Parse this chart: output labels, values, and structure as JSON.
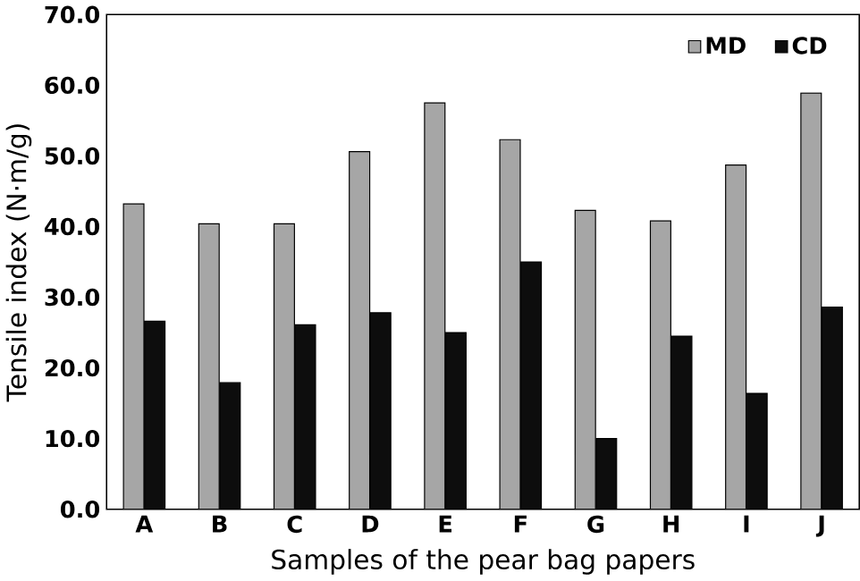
{
  "chart_data": {
    "type": "bar",
    "xlabel": "Samples of the pear bag papers",
    "ylabel": "Tensile index (N·m/g)",
    "categories": [
      "A",
      "B",
      "C",
      "D",
      "E",
      "F",
      "G",
      "H",
      "I",
      "J"
    ],
    "series": [
      {
        "name": "MD",
        "color": "#a6a6a6",
        "values": [
          43.2,
          40.4,
          40.4,
          50.6,
          57.5,
          52.3,
          42.3,
          40.8,
          48.7,
          58.9
        ]
      },
      {
        "name": "CD",
        "color": "#0d0d0d",
        "values": [
          26.6,
          17.9,
          26.1,
          27.8,
          25.0,
          35.0,
          10.0,
          24.5,
          16.4,
          28.6
        ]
      }
    ],
    "ylim": [
      0,
      70
    ],
    "yticks": [
      {
        "value": 0,
        "label": "0.0"
      },
      {
        "value": 10,
        "label": "10.0"
      },
      {
        "value": 20,
        "label": "20.0"
      },
      {
        "value": 30,
        "label": "30.0"
      },
      {
        "value": 40,
        "label": "40.0"
      },
      {
        "value": 50,
        "label": "50.0"
      },
      {
        "value": 60,
        "label": "60.0"
      },
      {
        "value": 70,
        "label": "70.0"
      }
    ],
    "legend": "top right",
    "grid": false
  }
}
